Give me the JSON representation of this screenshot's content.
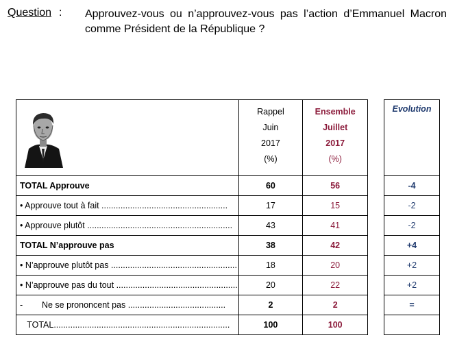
{
  "question": {
    "label": "Question",
    "colon": ":",
    "text": "Approuvez-vous ou n’approuvez-vous pas l’action d’Emmanuel Macron comme Président de la République ?"
  },
  "columns": {
    "rappel": [
      "Rappel",
      "Juin",
      "2017",
      "(%)"
    ],
    "ensemble": [
      "Ensemble",
      "Juillet",
      "2017",
      "(%)"
    ],
    "evolution": "Evolution"
  },
  "rows": [
    {
      "label": "TOTAL Approuve",
      "bold": true,
      "rappel": "60",
      "ensemble": "56",
      "evolution": "-4"
    },
    {
      "label": "• Approuve tout à fait .....................................................",
      "bold": false,
      "rappel": "17",
      "ensemble": "15",
      "evolution": "-2"
    },
    {
      "label": "• Approuve plutôt .............................................................",
      "bold": false,
      "rappel": "43",
      "ensemble": "41",
      "evolution": "-2"
    },
    {
      "label": "TOTAL N’approuve pas",
      "bold": true,
      "rappel": "38",
      "ensemble": "42",
      "evolution": "+4"
    },
    {
      "label": "• N’approuve plutôt pas .....................................................",
      "bold": false,
      "rappel": "18",
      "ensemble": "20",
      "evolution": "+2"
    },
    {
      "label": "• N’approuve pas du tout ...................................................",
      "bold": false,
      "rappel": "20",
      "ensemble": "22",
      "evolution": "+2"
    },
    {
      "label": "-        Ne se prononcent pas .........................................",
      "bold": false,
      "rappel": "2",
      "ensemble": "2",
      "evolution": "=",
      "numbold": true
    },
    {
      "label": "   TOTAL..........................................................................",
      "bold": false,
      "rappel": "100",
      "ensemble": "100",
      "evolution": "",
      "numbold": true
    }
  ],
  "colors": {
    "ensemble": "#8b1a3a",
    "evolution": "#1f3a6e"
  },
  "portrait_icon": "portrait-photo"
}
